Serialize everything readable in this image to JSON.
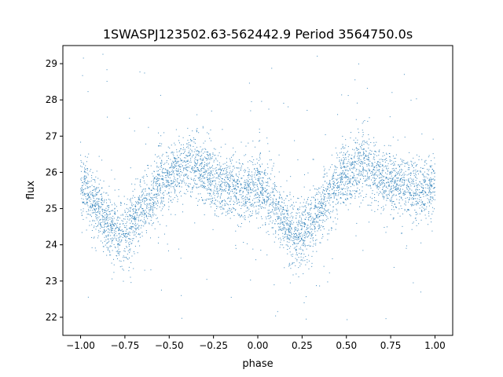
{
  "chart_data": {
    "type": "scatter",
    "title": "1SWASPJ123502.63-562442.9 Period 3564750.0s",
    "xlabel": "phase",
    "ylabel": "flux",
    "xlim": [
      -1.1,
      1.1
    ],
    "ylim": [
      21.5,
      29.5
    ],
    "xticks": [
      -1.0,
      -0.75,
      -0.5,
      -0.25,
      0.0,
      0.25,
      0.5,
      0.75,
      1.0
    ],
    "xtick_labels": [
      "−1.00",
      "−0.75",
      "−0.50",
      "−0.25",
      "0.00",
      "0.25",
      "0.50",
      "0.75",
      "1.00"
    ],
    "yticks": [
      22,
      23,
      24,
      25,
      26,
      27,
      28,
      29
    ],
    "ytick_labels": [
      "22",
      "23",
      "24",
      "25",
      "26",
      "27",
      "28",
      "29"
    ],
    "grid": false,
    "legend": "none",
    "marker_color": "#1f77b4",
    "series": [
      {
        "x": [
          -1.0,
          -0.95,
          -0.9,
          -0.85,
          -0.8,
          -0.75,
          -0.7,
          -0.65,
          -0.6,
          -0.55,
          -0.5,
          -0.45,
          -0.4,
          -0.35,
          -0.3,
          -0.25,
          -0.2,
          -0.15,
          -0.1,
          -0.05,
          0.0,
          0.05,
          0.1,
          0.15,
          0.2,
          0.25,
          0.3,
          0.35,
          0.4,
          0.45,
          0.5,
          0.55,
          0.6,
          0.65,
          0.7,
          0.75,
          0.8,
          0.85,
          0.9,
          0.95,
          1.0
        ],
        "y": [
          25.6,
          25.4,
          25.0,
          24.6,
          24.3,
          24.3,
          24.6,
          25.0,
          25.3,
          25.7,
          25.9,
          26.1,
          26.2,
          26.1,
          25.9,
          25.8,
          25.7,
          25.6,
          25.5,
          25.5,
          25.6,
          25.4,
          25.0,
          24.6,
          24.3,
          24.3,
          24.6,
          25.0,
          25.3,
          25.7,
          25.9,
          26.1,
          26.2,
          26.1,
          25.9,
          25.8,
          25.7,
          25.6,
          25.5,
          25.5,
          25.6
        ],
        "scatter_sd": 0.5
      }
    ]
  }
}
